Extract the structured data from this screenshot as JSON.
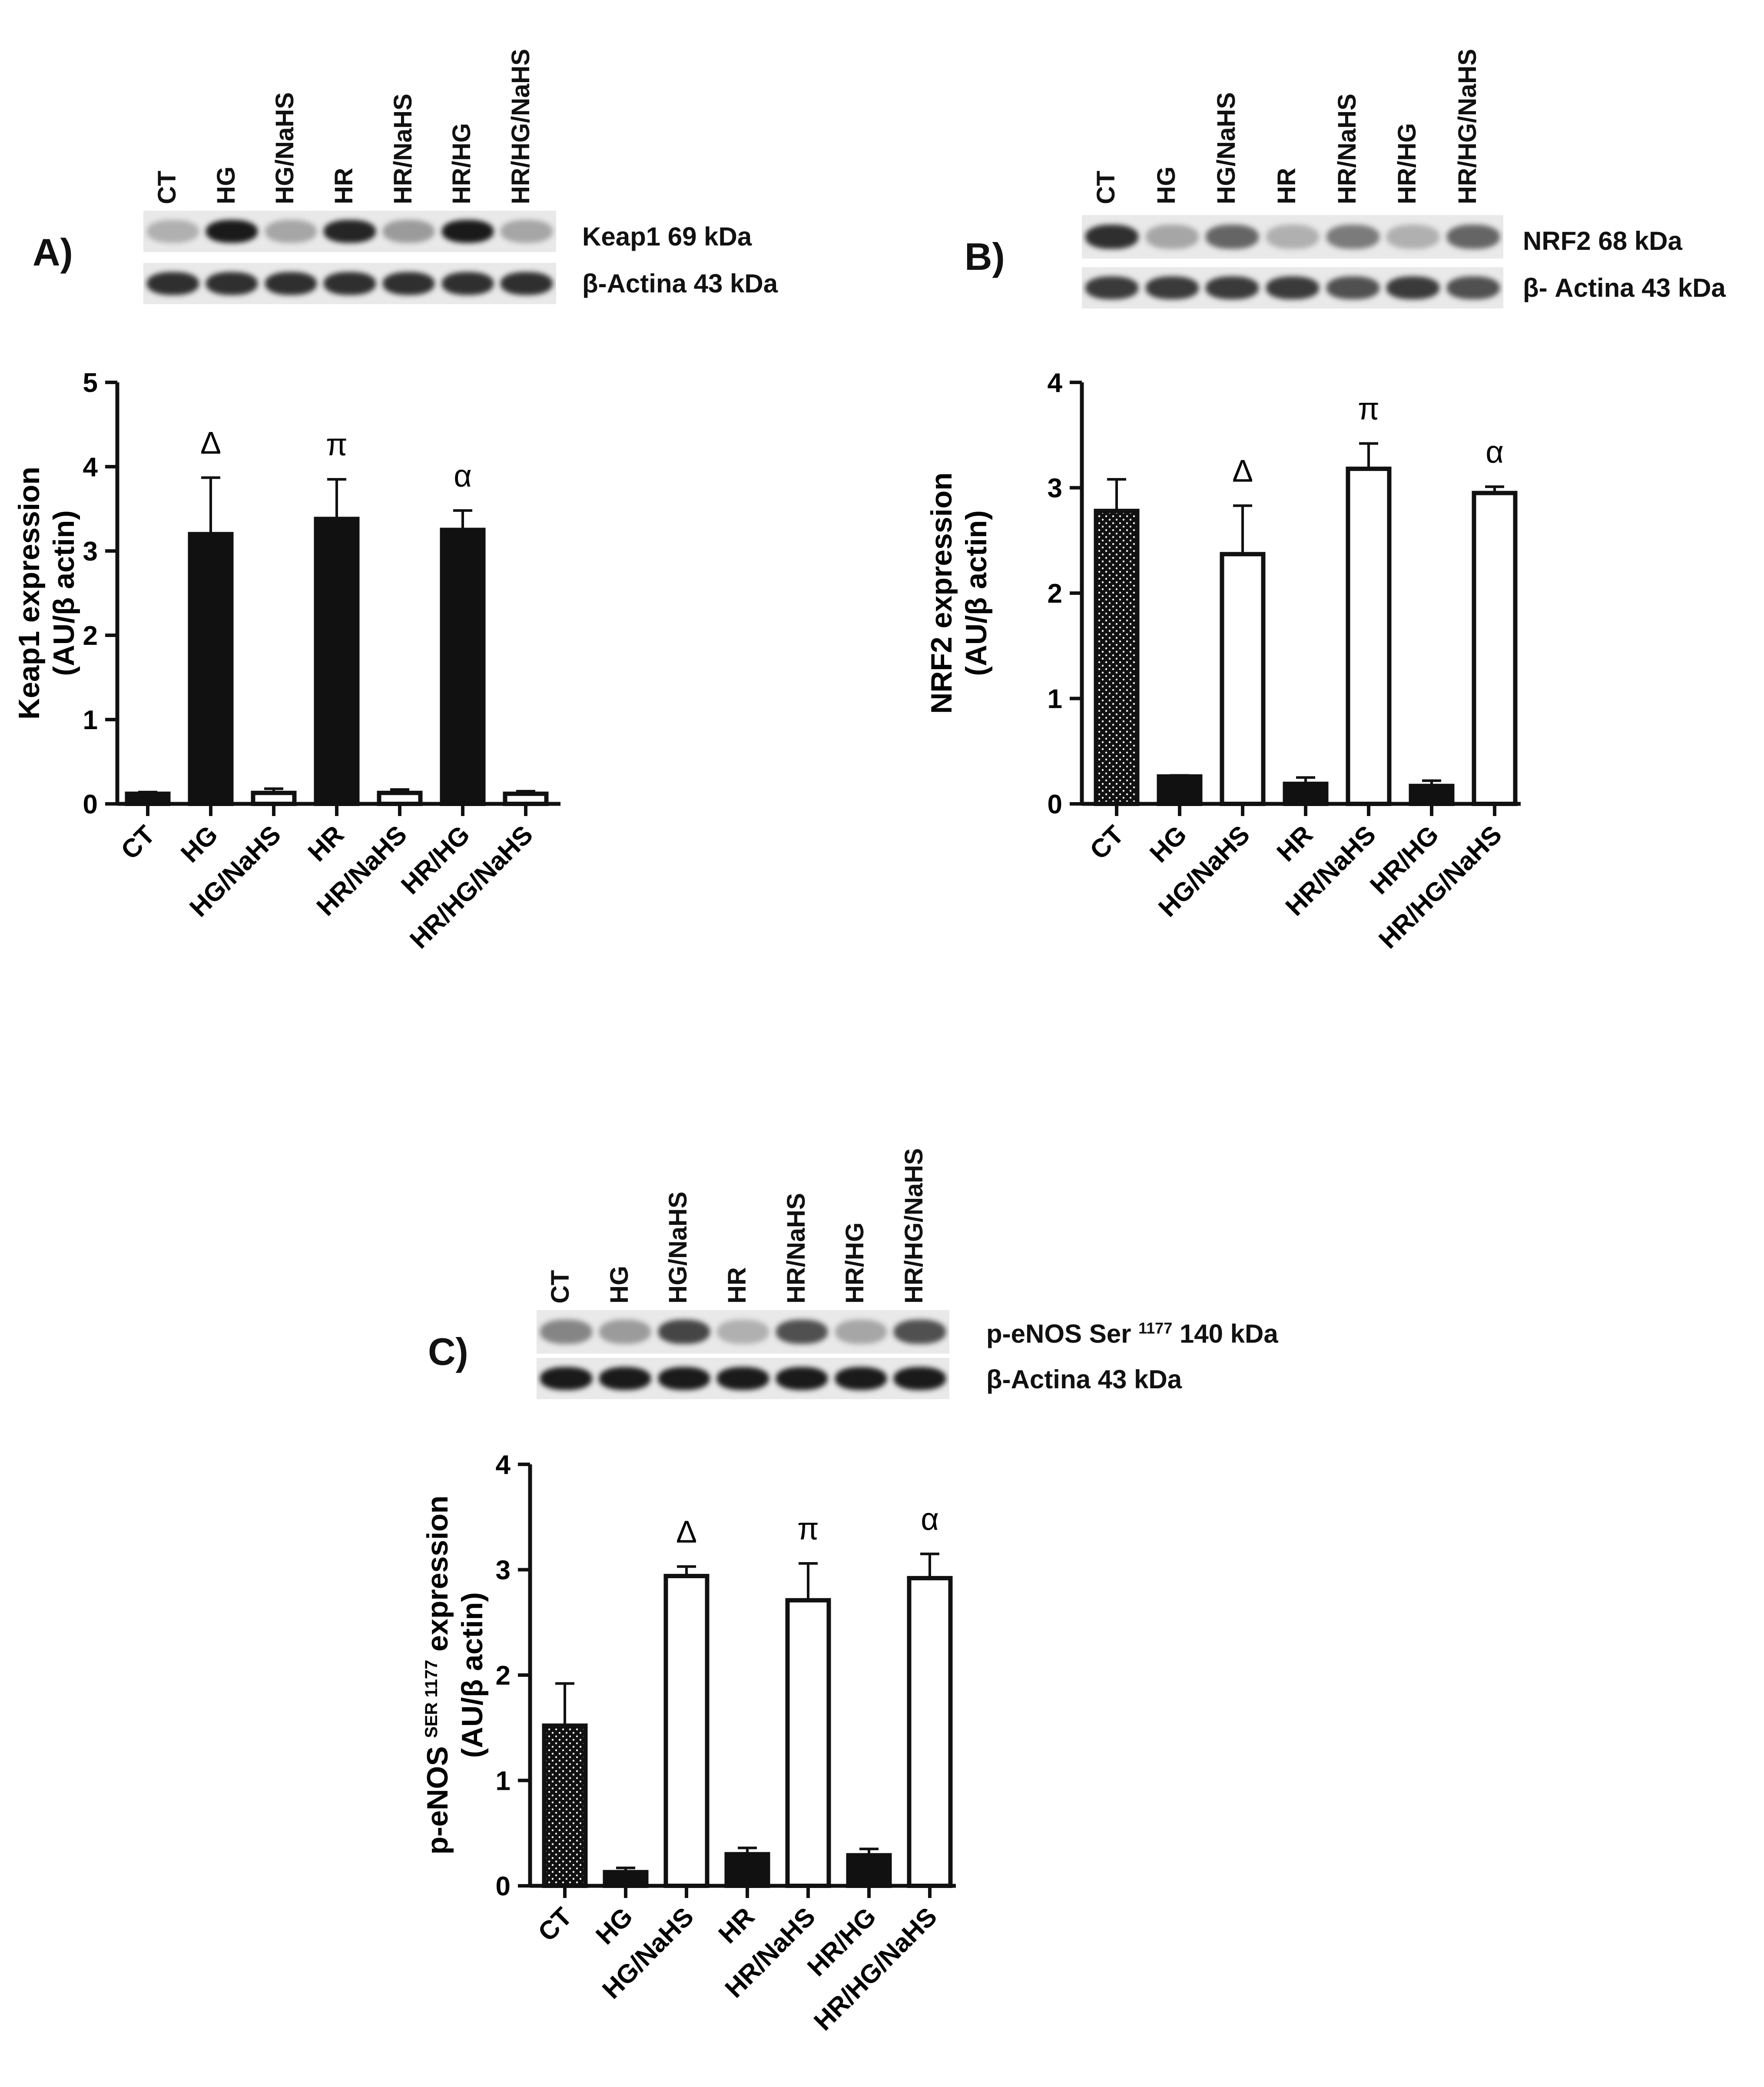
{
  "lanes": [
    "CT",
    "HG",
    "HG/NaHS",
    "HR",
    "HR/NaHS",
    "HR/HG",
    "HR/HG/NaHS"
  ],
  "panels": {
    "A": {
      "letter": "A)",
      "blot_labels": [
        "Keap1 69 kDa",
        "β-Actina 43 kDa"
      ],
      "target_intensity": [
        0.25,
        0.95,
        0.3,
        0.9,
        0.35,
        0.95,
        0.3
      ],
      "actin_intensity": [
        0.85,
        0.85,
        0.85,
        0.85,
        0.85,
        0.85,
        0.85
      ]
    },
    "B": {
      "letter": "B)",
      "blot_labels": [
        "NRF2 68 kDa",
        "β- Actina 43 kDa"
      ],
      "target_intensity": [
        0.85,
        0.3,
        0.6,
        0.25,
        0.5,
        0.25,
        0.6
      ],
      "actin_intensity": [
        0.8,
        0.8,
        0.8,
        0.8,
        0.7,
        0.8,
        0.7
      ]
    },
    "C": {
      "letter": "C)",
      "blot_labels": [
        "p-eNOS Ser ",
        "1177",
        " 140 kDa",
        "β-Actina 43 kDa"
      ],
      "target_intensity": [
        0.45,
        0.35,
        0.75,
        0.25,
        0.7,
        0.3,
        0.7
      ],
      "actin_intensity": [
        0.95,
        0.95,
        0.95,
        0.95,
        0.95,
        0.95,
        0.95
      ]
    }
  },
  "chart_data": [
    {
      "type": "bar",
      "id": "A",
      "categories": [
        "CT",
        "HG",
        "HG/NaHS",
        "HR",
        "HR/NaHS",
        "HR/HG",
        "HR/HG/NaHS"
      ],
      "values": [
        0.12,
        3.2,
        0.13,
        3.38,
        0.13,
        3.25,
        0.12
      ],
      "errors": [
        0.02,
        0.67,
        0.05,
        0.47,
        0.04,
        0.23,
        0.03
      ],
      "fills": [
        "black",
        "black",
        "white",
        "black",
        "white",
        "black",
        "white"
      ],
      "annotations": [
        null,
        "Δ",
        null,
        "π",
        null,
        "α",
        null
      ],
      "ylabel": "Keap1 expression",
      "ylabel2": "(AU/β actin)",
      "ylim": [
        0,
        5
      ],
      "yticks": [
        "0",
        "1",
        "2",
        "3",
        "4",
        "5"
      ],
      "title": "",
      "xlabel": ""
    },
    {
      "type": "bar",
      "id": "B",
      "categories": [
        "CT",
        "HG",
        "HG/NaHS",
        "HR",
        "HR/NaHS",
        "HR/HG",
        "HR/HG/NaHS"
      ],
      "values": [
        2.78,
        0.26,
        2.37,
        0.19,
        3.18,
        0.17,
        2.95
      ],
      "errors": [
        0.3,
        0.01,
        0.46,
        0.06,
        0.24,
        0.05,
        0.06
      ],
      "fills": [
        "dotted",
        "black",
        "white",
        "black",
        "white",
        "black",
        "white"
      ],
      "annotations": [
        null,
        null,
        "Δ",
        null,
        "π",
        null,
        "α"
      ],
      "ylabel": "NRF2 expression",
      "ylabel2": "(AU/β actin)",
      "ylim": [
        0,
        4
      ],
      "yticks": [
        "0",
        "1",
        "2",
        "3",
        "4"
      ],
      "title": "",
      "xlabel": ""
    },
    {
      "type": "bar",
      "id": "C",
      "categories": [
        "CT",
        "HG",
        "HG/NaHS",
        "HR",
        "HR/NaHS",
        "HR/HG",
        "HR/HG/NaHS"
      ],
      "values": [
        1.52,
        0.13,
        2.94,
        0.3,
        2.71,
        0.29,
        2.92
      ],
      "errors": [
        0.4,
        0.04,
        0.09,
        0.06,
        0.35,
        0.06,
        0.23
      ],
      "fills": [
        "dotted",
        "black",
        "white",
        "black",
        "white",
        "black",
        "white"
      ],
      "annotations": [
        null,
        null,
        "Δ",
        null,
        "π",
        null,
        "α"
      ],
      "ylabel": "p-eNOS ",
      "ylabel_sup": "SER 1177",
      "ylabel_tail": " expression",
      "ylabel2": "(AU/β actin)",
      "ylim": [
        0,
        4
      ],
      "yticks": [
        "0",
        "1",
        "2",
        "3",
        "4"
      ],
      "title": "",
      "xlabel": ""
    }
  ]
}
